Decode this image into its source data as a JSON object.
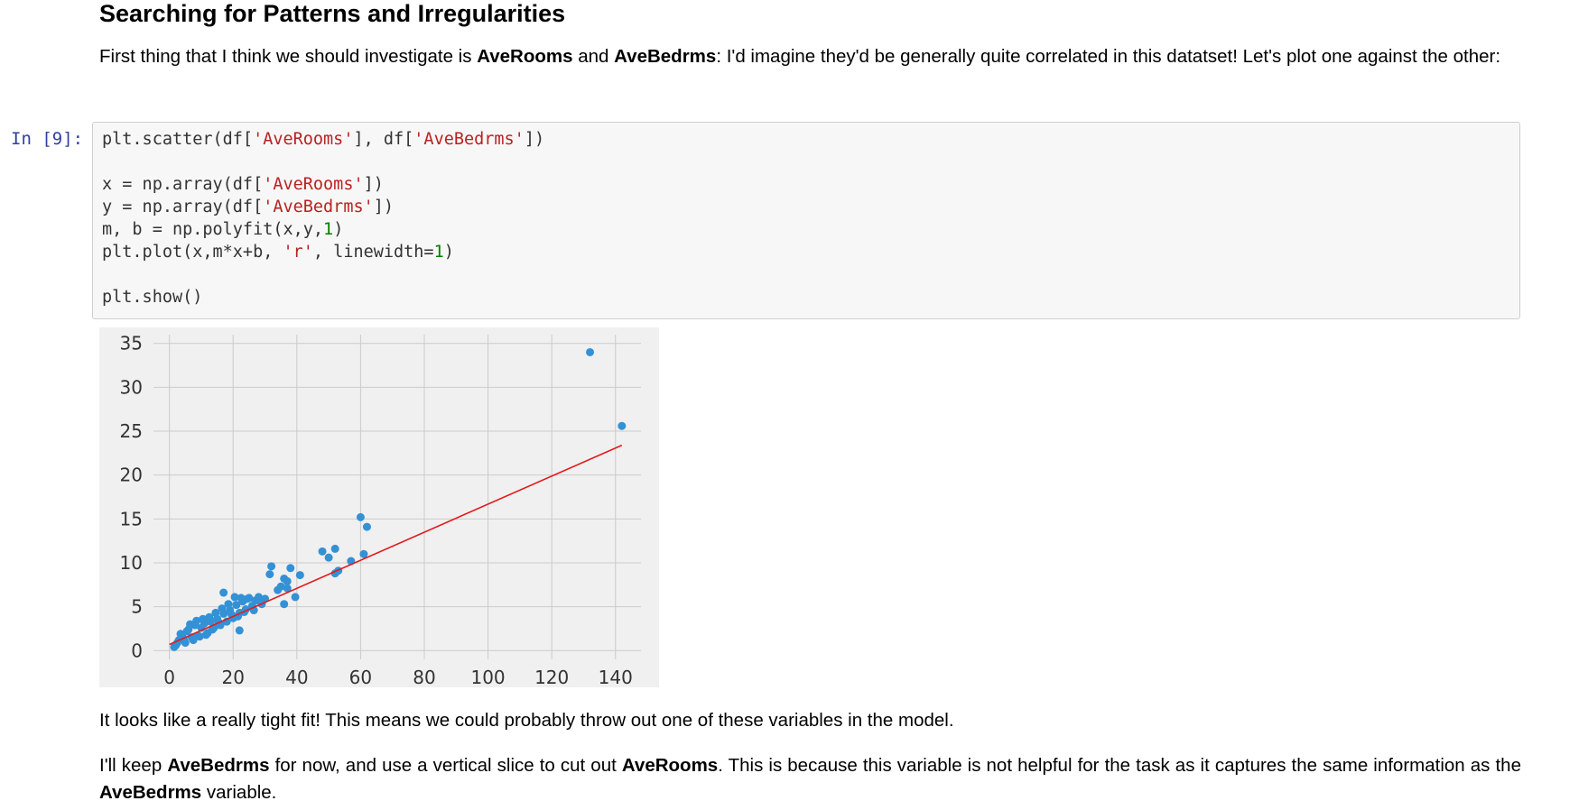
{
  "heading": "Searching for Patterns and Irregularities",
  "intro": {
    "t1": "First thing that I think we should investigate is ",
    "b1": "AveRooms",
    "t2": " and ",
    "b2": "AveBedrms",
    "t3": ": I'd imagine they'd be generally quite correlated in this datatset! Let's plot one against the other:"
  },
  "cell": {
    "prompt": "In [9]:",
    "code": [
      "plt.scatter(df['AveRooms'], df['AveBedrms'])",
      "",
      "x = np.array(df['AveRooms'])",
      "y = np.array(df['AveBedrms'])",
      "m, b = np.polyfit(x,y,1)",
      "plt.plot(x,m*x+b, 'r', linewidth=1)",
      "",
      "plt.show()"
    ]
  },
  "conclusion1": "It looks like a really tight fit! This means we could probably throw out one of these variables in the model.",
  "conclusion2": {
    "t1": "I'll keep ",
    "b1": "AveBedrms",
    "t2": " for now, and use a vertical slice to cut out ",
    "b2": "AveRooms",
    "t3": ". This is because this variable is not helpful for the task as it captures the same information as the ",
    "b3": "AveBedrms",
    "t4": " variable."
  },
  "colors": {
    "points": "#3391d6",
    "fit_line": "#e31a1c",
    "plot_bg": "#f0f0f0",
    "grid": "#cbcbcb"
  },
  "chart_data": {
    "type": "scatter",
    "xlim": [
      -5,
      148
    ],
    "ylim": [
      -1,
      36
    ],
    "xticks": [
      0,
      20,
      40,
      60,
      80,
      100,
      120,
      140
    ],
    "yticks": [
      0,
      5,
      10,
      15,
      20,
      25,
      30,
      35
    ],
    "grid": true,
    "points": [
      [
        132,
        34
      ],
      [
        142,
        25.6
      ],
      [
        60,
        15.2
      ],
      [
        62,
        14.1
      ],
      [
        48,
        11.3
      ],
      [
        52,
        11.6
      ],
      [
        50,
        10.6
      ],
      [
        57,
        10.2
      ],
      [
        61,
        11
      ],
      [
        53,
        9.1
      ],
      [
        52,
        8.8
      ],
      [
        32,
        9.6
      ],
      [
        31.5,
        8.7
      ],
      [
        38,
        9.4
      ],
      [
        41,
        8.6
      ],
      [
        36,
        8.2
      ],
      [
        37,
        7.9
      ],
      [
        35,
        7.3
      ],
      [
        37,
        7.1
      ],
      [
        34,
        6.9
      ],
      [
        39.5,
        6.1
      ],
      [
        36,
        5.3
      ],
      [
        17,
        6.6
      ],
      [
        22,
        2.3
      ],
      [
        2,
        0.6
      ],
      [
        3,
        1.2
      ],
      [
        4,
        1.8
      ],
      [
        5,
        0.9
      ],
      [
        6,
        2.4
      ],
      [
        7,
        1.5
      ],
      [
        8,
        2.9
      ],
      [
        9,
        1.7
      ],
      [
        10,
        2.6
      ],
      [
        11,
        3.1
      ],
      [
        12,
        2.0
      ],
      [
        13,
        3.3
      ],
      [
        14,
        2.6
      ],
      [
        15,
        3.6
      ],
      [
        16,
        2.9
      ],
      [
        17,
        4.2
      ],
      [
        18,
        3.3
      ],
      [
        19,
        4.6
      ],
      [
        20,
        3.7
      ],
      [
        21,
        5.2
      ],
      [
        22,
        4.3
      ],
      [
        23,
        5.6
      ],
      [
        24,
        4.7
      ],
      [
        25,
        6.0
      ],
      [
        26,
        5.1
      ],
      [
        27,
        5.7
      ],
      [
        28,
        6.1
      ],
      [
        29,
        5.3
      ],
      [
        30,
        5.9
      ],
      [
        2.5,
        0.9
      ],
      [
        1.5,
        0.4
      ],
      [
        3.5,
        1.9
      ],
      [
        5.5,
        2.2
      ],
      [
        6.5,
        3.0
      ],
      [
        8.5,
        3.4
      ],
      [
        10.5,
        3.6
      ],
      [
        12.5,
        3.8
      ],
      [
        14.5,
        4.3
      ],
      [
        16.5,
        4.8
      ],
      [
        18.5,
        5.3
      ],
      [
        20.5,
        6.1
      ],
      [
        22.5,
        6.0
      ],
      [
        24.5,
        5.9
      ],
      [
        4.5,
        1.3
      ],
      [
        7.5,
        1.2
      ],
      [
        9.5,
        1.6
      ],
      [
        11.5,
        1.8
      ],
      [
        13.5,
        2.4
      ],
      [
        15.5,
        3.2
      ],
      [
        19.5,
        4.1
      ],
      [
        21.5,
        3.9
      ],
      [
        23.5,
        4.4
      ],
      [
        26.5,
        4.6
      ],
      [
        28.5,
        5.6
      ]
    ],
    "fit_line": {
      "x": [
        0,
        142
      ],
      "y": [
        0.7,
        23.4
      ]
    }
  }
}
